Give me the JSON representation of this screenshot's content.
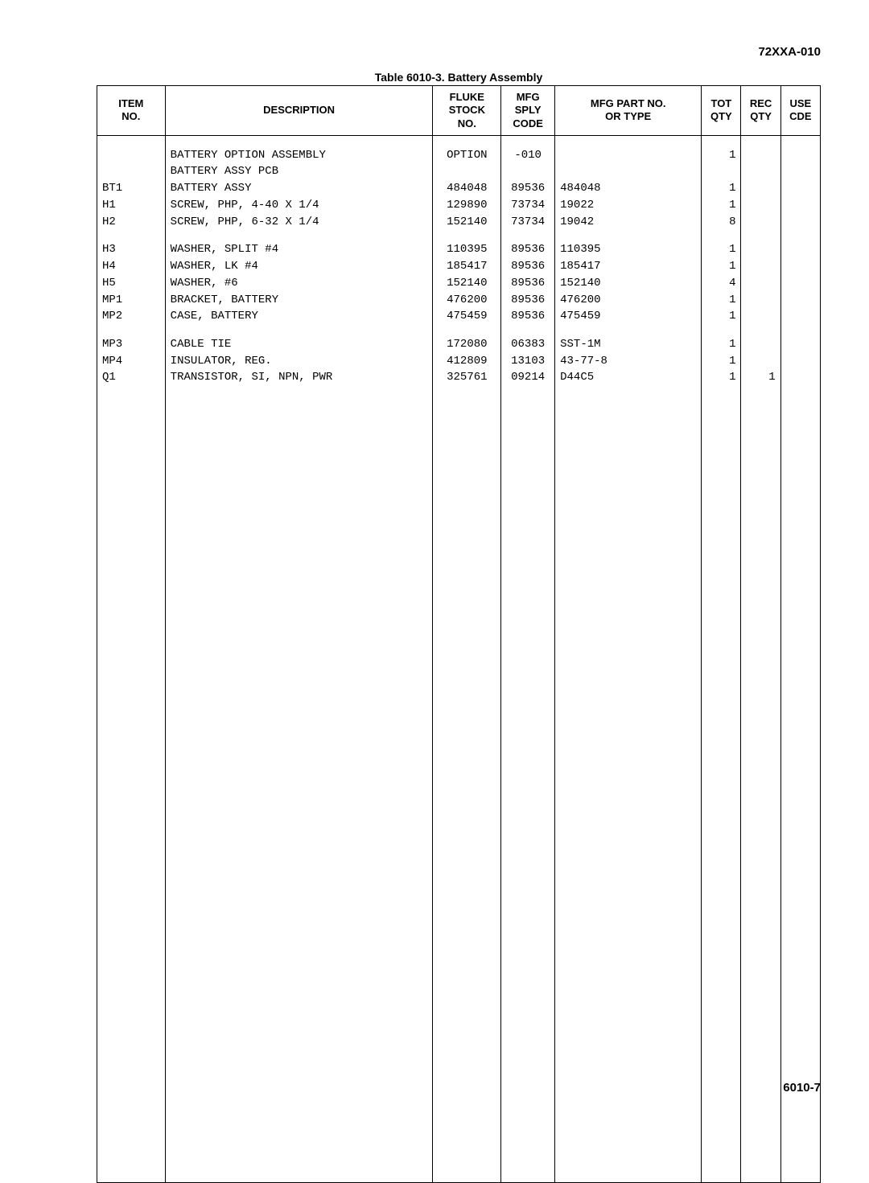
{
  "doc_id": "72XXA-010",
  "table_title": "Table 6010-3. Battery Assembly",
  "page_number": "6010-7",
  "headers": {
    "item": "ITEM\nNO.",
    "desc": "DESCRIPTION",
    "stock": "FLUKE\nSTOCK\nNO.",
    "sply": "MFG\nSPLY\nCODE",
    "mfg": "MFG PART NO.\nOR TYPE",
    "tot": "TOT\nQTY",
    "rec": "REC\nQTY",
    "use": "USE\nCDE"
  },
  "groups": [
    [
      {
        "item": "",
        "desc": "BATTERY OPTION ASSEMBLY",
        "stock": "OPTION",
        "sply": "-010",
        "mfg": "",
        "tot": "1",
        "rec": "",
        "use": ""
      },
      {
        "item": "",
        "desc": "BATTERY ASSY PCB",
        "stock": "",
        "sply": "",
        "mfg": "",
        "tot": "",
        "rec": "",
        "use": ""
      },
      {
        "item": "BT1",
        "desc": "BATTERY ASSY",
        "stock": "484048",
        "sply": "89536",
        "mfg": "484048",
        "tot": "1",
        "rec": "",
        "use": ""
      },
      {
        "item": "H1",
        "desc": "SCREW, PHP, 4-40 X 1/4",
        "stock": "129890",
        "sply": "73734",
        "mfg": "19022",
        "tot": "1",
        "rec": "",
        "use": ""
      },
      {
        "item": "H2",
        "desc": "SCREW, PHP, 6-32 X 1/4",
        "stock": "152140",
        "sply": "73734",
        "mfg": "19042",
        "tot": "8",
        "rec": "",
        "use": ""
      }
    ],
    [
      {
        "item": "H3",
        "desc": "WASHER, SPLIT #4",
        "stock": "110395",
        "sply": "89536",
        "mfg": "110395",
        "tot": "1",
        "rec": "",
        "use": ""
      },
      {
        "item": "H4",
        "desc": "WASHER, LK #4",
        "stock": "185417",
        "sply": "89536",
        "mfg": "185417",
        "tot": "1",
        "rec": "",
        "use": ""
      },
      {
        "item": "H5",
        "desc": "WASHER, #6",
        "stock": "152140",
        "sply": "89536",
        "mfg": "152140",
        "tot": "4",
        "rec": "",
        "use": ""
      },
      {
        "item": "MP1",
        "desc": "BRACKET, BATTERY",
        "stock": "476200",
        "sply": "89536",
        "mfg": "476200",
        "tot": "1",
        "rec": "",
        "use": ""
      },
      {
        "item": "MP2",
        "desc": "CASE, BATTERY",
        "stock": "475459",
        "sply": "89536",
        "mfg": "475459",
        "tot": "1",
        "rec": "",
        "use": ""
      }
    ],
    [
      {
        "item": "MP3",
        "desc": "CABLE TIE",
        "stock": "172080",
        "sply": "06383",
        "mfg": "SST-1M",
        "tot": "1",
        "rec": "",
        "use": ""
      },
      {
        "item": "MP4",
        "desc": "INSULATOR, REG.",
        "stock": "412809",
        "sply": "13103",
        "mfg": "43-77-8",
        "tot": "1",
        "rec": "",
        "use": ""
      },
      {
        "item": "Q1",
        "desc": "TRANSISTOR, SI, NPN, PWR",
        "stock": "325761",
        "sply": "09214",
        "mfg": "D44C5",
        "tot": "1",
        "rec": "1",
        "use": ""
      }
    ]
  ]
}
